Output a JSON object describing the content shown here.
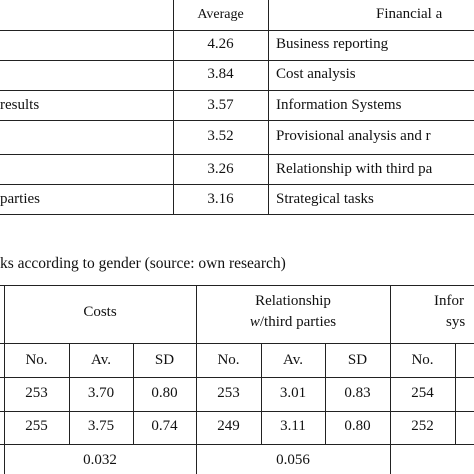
{
  "table1": {
    "header": {
      "average": "Average",
      "financial": "Financial a"
    },
    "rows": [
      {
        "left": "",
        "average": "4.26",
        "task": "Business reporting"
      },
      {
        "left": "",
        "average": "3.84",
        "task": "Cost analysis"
      },
      {
        "left": "results",
        "average": "3.57",
        "task": "Information Systems"
      },
      {
        "left": "",
        "average": "3.52",
        "task": "Provisional analysis and r"
      },
      {
        "left": "",
        "average": "3.26",
        "task": "Relationship with third pa"
      },
      {
        "left": "parties",
        "average": "3.16",
        "task": "Strategical tasks"
      }
    ]
  },
  "caption": "ks according to gender (source: own research)",
  "table2": {
    "groups": {
      "costs": "Costs",
      "relationship_line1": "Relationship",
      "relationship_line2_prefix": "w",
      "relationship_line2_rest": "/third parties",
      "info_line1": "Infor",
      "info_line2": "sys"
    },
    "subheaders": {
      "no": "No.",
      "av": "Av.",
      "sd": "SD",
      "no_partial": "No."
    },
    "rows": [
      {
        "costs_no": "253",
        "costs_av": "3.70",
        "costs_sd": "0.80",
        "rel_no": "253",
        "rel_av": "3.01",
        "rel_sd": "0.83",
        "info_no": "254"
      },
      {
        "costs_no": "255",
        "costs_av": "3.75",
        "costs_sd": "0.74",
        "rel_no": "249",
        "rel_av": "3.11",
        "rel_sd": "0.80",
        "info_no": "252"
      }
    ],
    "pvalues": {
      "costs": "0.032",
      "relationship": "0.056"
    }
  }
}
